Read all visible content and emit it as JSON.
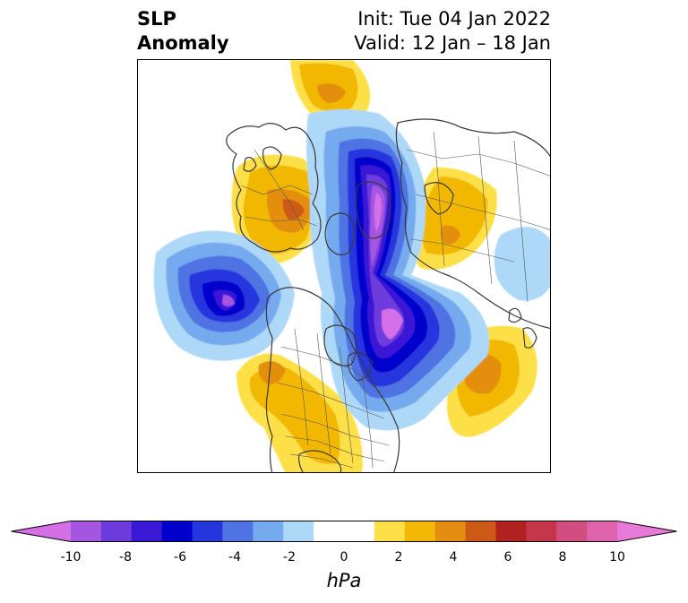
{
  "title": {
    "left_line1": "SLP",
    "left_line2": "Anomaly",
    "right_line1": "Init: Tue 04 Jan 2022",
    "right_line2": "Valid: 12 Jan – 18 Jan"
  },
  "colorbar": {
    "units": "hPa",
    "tick_labels": [
      "-10",
      "-8",
      "-6",
      "-4",
      "-2",
      "0",
      "2",
      "4",
      "6",
      "8",
      "10"
    ],
    "colors": [
      "#d46fe8",
      "#a456e0",
      "#6e3bdc",
      "#3a19d6",
      "#0000cc",
      "#2536dd",
      "#4f73e3",
      "#75aaee",
      "#add8f7",
      "#ffffff",
      "#ffffff",
      "#fde047",
      "#f2b805",
      "#e38e10",
      "#cc5a16",
      "#b0211f",
      "#c6364a",
      "#d34e80",
      "#de63ac",
      "#e77ad8"
    ]
  },
  "map": {
    "projection": "north-polar-stereographic",
    "features": [
      "coastlines",
      "country-borders",
      "us-state-borders",
      "canada-province-borders"
    ],
    "colors": {
      "coast": "#3a3a3a",
      "border": "#555555"
    }
  }
}
